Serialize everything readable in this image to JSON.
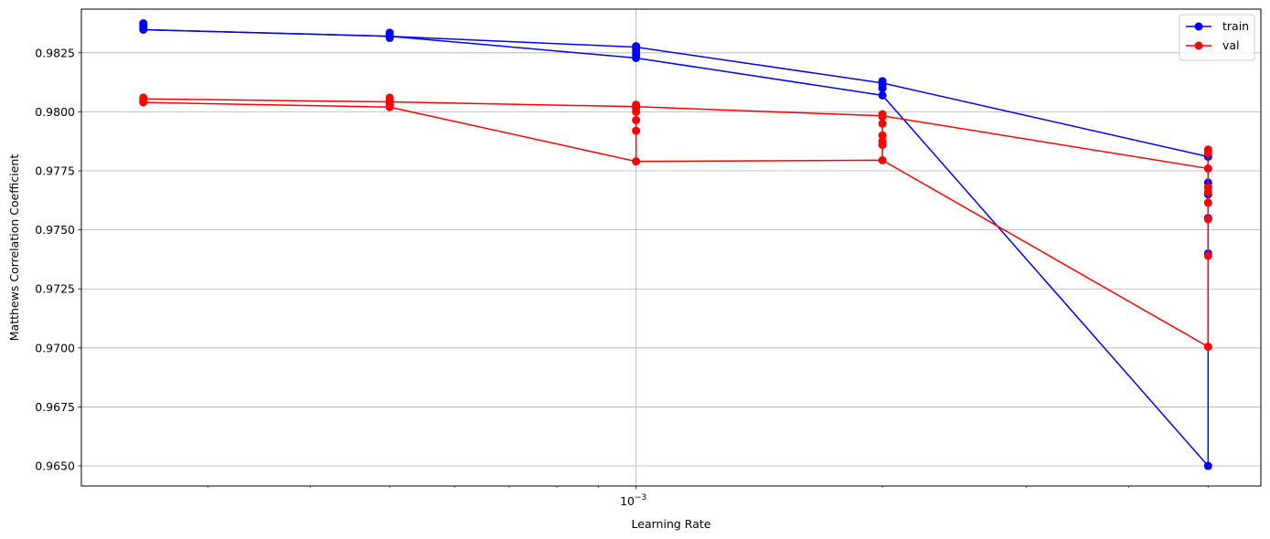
{
  "chart_data": {
    "type": "line",
    "xscale": "log",
    "xlabel": "Learning Rate",
    "ylabel": "Matthews Correlation Coefficient",
    "xlim": [
      0.00021,
      0.0058
    ],
    "ylim": [
      0.96415,
      0.98435
    ],
    "grid": true,
    "legend_position": "top-right",
    "x_tick_labels": [
      {
        "value": 0.001,
        "base": "10",
        "exp": "−3"
      }
    ],
    "y_ticks": [
      0.965,
      0.9675,
      0.97,
      0.9725,
      0.975,
      0.9775,
      0.98,
      0.9825
    ],
    "y_tick_labels": [
      "0.9650",
      "0.9675",
      "0.9700",
      "0.9725",
      "0.9750",
      "0.9775",
      "0.9800",
      "0.9825"
    ],
    "series": [
      {
        "name": "train",
        "color": "#0000ff",
        "line_x": [
          0.00025,
          0.0005,
          0.001,
          0.002,
          0.005
        ],
        "line_y": [
          0.98348,
          0.9832,
          0.98274,
          0.98122,
          0.9781
        ],
        "drop_x": [
          0.00025,
          0.0005,
          0.001,
          0.002,
          0.005
        ],
        "drop_y": [
          0.98348,
          0.9832,
          0.98228,
          0.9807,
          0.965
        ],
        "points": [
          {
            "x": 0.00025,
            "y": 0.98375
          },
          {
            "x": 0.00025,
            "y": 0.98365
          },
          {
            "x": 0.00025,
            "y": 0.98355
          },
          {
            "x": 0.00025,
            "y": 0.98348
          },
          {
            "x": 0.0005,
            "y": 0.98335
          },
          {
            "x": 0.0005,
            "y": 0.98327
          },
          {
            "x": 0.0005,
            "y": 0.9832
          },
          {
            "x": 0.0005,
            "y": 0.98313
          },
          {
            "x": 0.001,
            "y": 0.98278
          },
          {
            "x": 0.001,
            "y": 0.98265
          },
          {
            "x": 0.001,
            "y": 0.98252
          },
          {
            "x": 0.001,
            "y": 0.9824
          },
          {
            "x": 0.001,
            "y": 0.98228
          },
          {
            "x": 0.002,
            "y": 0.9813
          },
          {
            "x": 0.002,
            "y": 0.98115
          },
          {
            "x": 0.002,
            "y": 0.981
          },
          {
            "x": 0.002,
            "y": 0.9807
          },
          {
            "x": 0.005,
            "y": 0.9781
          },
          {
            "x": 0.005,
            "y": 0.977
          },
          {
            "x": 0.005,
            "y": 0.9765
          },
          {
            "x": 0.005,
            "y": 0.9755
          },
          {
            "x": 0.005,
            "y": 0.974
          },
          {
            "x": 0.005,
            "y": 0.965
          }
        ]
      },
      {
        "name": "val",
        "color": "#ff0000",
        "line_x": [
          0.00025,
          0.0005,
          0.001,
          0.002,
          0.005
        ],
        "line_y": [
          0.98055,
          0.98042,
          0.98022,
          0.97983,
          0.9776
        ],
        "drop_x": [
          0.00025,
          0.0005,
          0.001,
          0.002,
          0.005
        ],
        "drop_y": [
          0.9804,
          0.9802,
          0.9779,
          0.97795,
          0.97005
        ],
        "points": [
          {
            "x": 0.00025,
            "y": 0.9806
          },
          {
            "x": 0.00025,
            "y": 0.98052
          },
          {
            "x": 0.00025,
            "y": 0.98045
          },
          {
            "x": 0.00025,
            "y": 0.9804
          },
          {
            "x": 0.0005,
            "y": 0.9806
          },
          {
            "x": 0.0005,
            "y": 0.9805
          },
          {
            "x": 0.0005,
            "y": 0.9804
          },
          {
            "x": 0.0005,
            "y": 0.9803
          },
          {
            "x": 0.0005,
            "y": 0.9802
          },
          {
            "x": 0.001,
            "y": 0.9803
          },
          {
            "x": 0.001,
            "y": 0.98015
          },
          {
            "x": 0.001,
            "y": 0.98
          },
          {
            "x": 0.001,
            "y": 0.97965
          },
          {
            "x": 0.001,
            "y": 0.9792
          },
          {
            "x": 0.001,
            "y": 0.9779
          },
          {
            "x": 0.002,
            "y": 0.9799
          },
          {
            "x": 0.002,
            "y": 0.9798
          },
          {
            "x": 0.002,
            "y": 0.9795
          },
          {
            "x": 0.002,
            "y": 0.979
          },
          {
            "x": 0.002,
            "y": 0.97875
          },
          {
            "x": 0.002,
            "y": 0.9786
          },
          {
            "x": 0.002,
            "y": 0.97795
          },
          {
            "x": 0.005,
            "y": 0.9784
          },
          {
            "x": 0.005,
            "y": 0.97825
          },
          {
            "x": 0.005,
            "y": 0.9776
          },
          {
            "x": 0.005,
            "y": 0.9768
          },
          {
            "x": 0.005,
            "y": 0.9766
          },
          {
            "x": 0.005,
            "y": 0.97615
          },
          {
            "x": 0.005,
            "y": 0.97545
          },
          {
            "x": 0.005,
            "y": 0.9739
          },
          {
            "x": 0.005,
            "y": 0.97005
          }
        ]
      }
    ]
  }
}
